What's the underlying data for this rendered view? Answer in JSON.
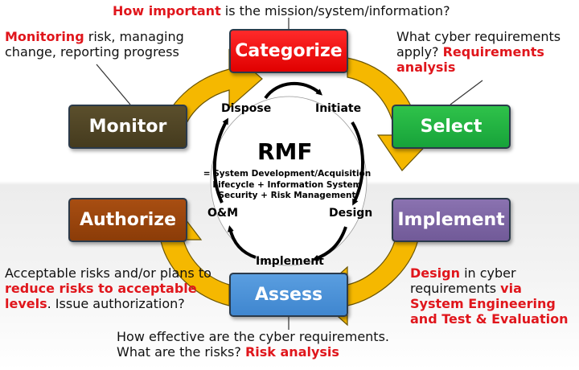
{
  "steps": {
    "categorize": "Categorize",
    "select": "Select",
    "implement": "Implement",
    "assess": "Assess",
    "authorize": "Authorize",
    "monitor": "Monitor"
  },
  "notes": {
    "top": {
      "highlight": "How important",
      "rest": " is the mission/system/information?"
    },
    "top_left": {
      "highlight": "Monitoring",
      "rest": " risk, managing change, reporting progress"
    },
    "top_right": {
      "text": "What cyber requirements apply? ",
      "highlight": "Requirements analysis"
    },
    "bottom_left": {
      "text1": "Acceptable risks and/or plans to ",
      "highlight": "reduce risks to acceptable levels",
      "text2": ". Issue authorization?"
    },
    "bottom_right": {
      "highlight1": "Design",
      "text": " in cyber requirements ",
      "highlight2": "via System Engineering and Test & Evaluation"
    },
    "bottom": {
      "line1": "How effective are the cyber requirements.",
      "line2_text": "What are the risks? ",
      "line2_highlight": "Risk analysis"
    }
  },
  "center": {
    "title": "RMF",
    "definition": "= System Development/Acquisition Lifecycle + Information System Security + Risk Management"
  },
  "lifecycle": {
    "dispose": "Dispose",
    "initiate": "Initiate",
    "om": "O&M",
    "design": "Design",
    "implement": "Implement"
  },
  "colors": {
    "categorize": "#e80000",
    "select": "#1faa3f",
    "implement": "#7b62a3",
    "assess": "#4a90d9",
    "authorize": "#983f0b",
    "monitor": "#4e4424",
    "arrow_fill": "#f5b800",
    "arrow_stroke": "#6b5500",
    "highlight_text": "#e0161c"
  }
}
